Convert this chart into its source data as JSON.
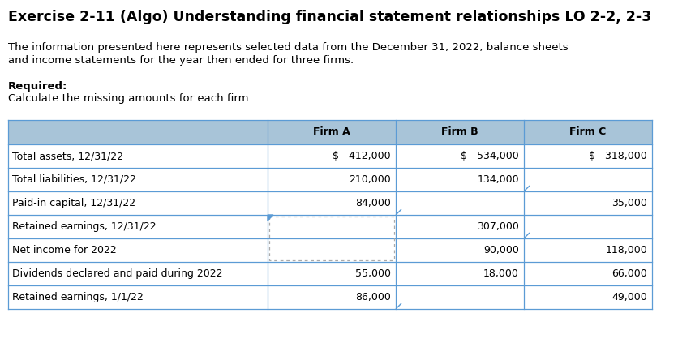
{
  "title": "Exercise 2-11 (Algo) Understanding financial statement relationships LO 2-2, 2-3",
  "intro_line1": "The information presented here represents selected data from the December 31, 2022, balance sheets",
  "intro_line2": "and income statements for the year then ended for three firms.",
  "required_label": "Required:",
  "required_text": "Calculate the missing amounts for each firm.",
  "header_bg": "#a8c4d8",
  "row_labels": [
    "Total assets, 12/31/22",
    "Total liabilities, 12/31/22",
    "Paid-in capital, 12/31/22",
    "Retained earnings, 12/31/22",
    "Net income for 2022",
    "Dividends declared and paid during 2022",
    "Retained earnings, 1/1/22"
  ],
  "col_headers": [
    "Firm A",
    "Firm B",
    "Firm C"
  ],
  "data": [
    [
      "$   412,000",
      "$   534,000",
      "$   318,000"
    ],
    [
      "210,000",
      "134,000",
      ""
    ],
    [
      "84,000",
      "",
      "35,000"
    ],
    [
      "",
      "307,000",
      ""
    ],
    [
      "",
      "90,000",
      "118,000"
    ],
    [
      "55,000",
      "18,000",
      "66,000"
    ],
    [
      "86,000",
      "",
      "49,000"
    ]
  ],
  "bg_color": "#ffffff",
  "text_color": "#000000",
  "border_color": "#5b9bd5",
  "title_fontsize": 12.5,
  "body_fontsize": 9.5,
  "table_fontsize": 9.0
}
